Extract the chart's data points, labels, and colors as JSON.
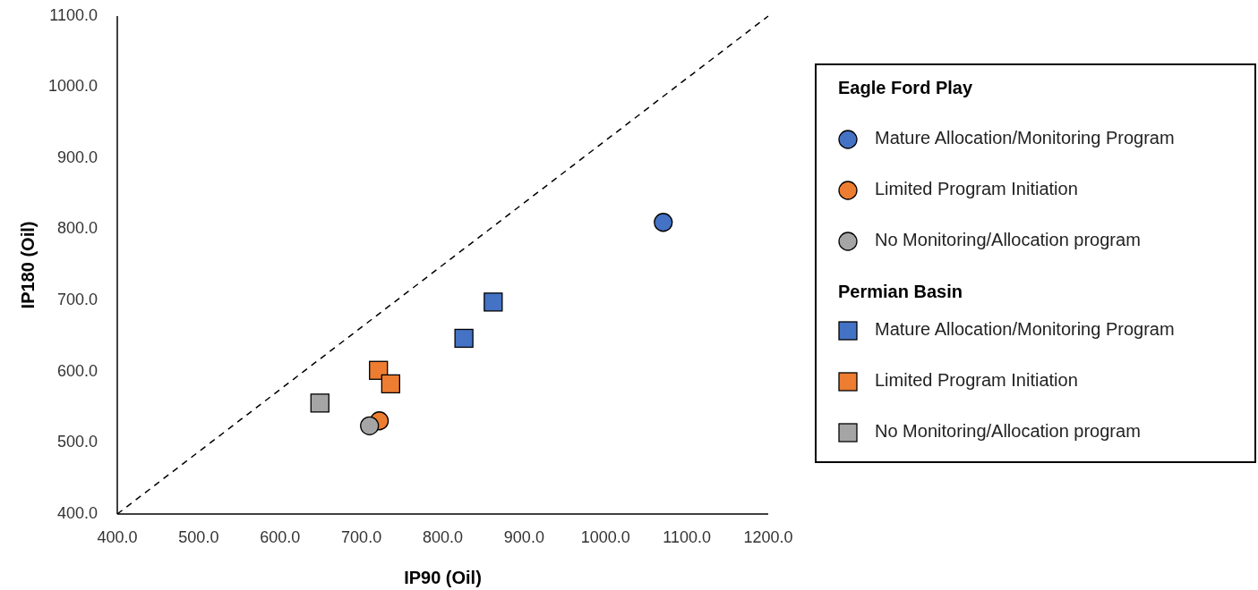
{
  "chart_data": {
    "type": "scatter",
    "xlabel": "IP90 (Oil)",
    "ylabel": "IP180 (Oil)",
    "xlim": [
      400,
      1200
    ],
    "ylim": [
      400,
      1100
    ],
    "xticks": [
      {
        "value": 400,
        "label": "400.0"
      },
      {
        "value": 500,
        "label": "500.0"
      },
      {
        "value": 600,
        "label": "600.0"
      },
      {
        "value": 700,
        "label": "700.0"
      },
      {
        "value": 800,
        "label": "800.0"
      },
      {
        "value": 900,
        "label": "900.0"
      },
      {
        "value": 1000,
        "label": "1000.0"
      },
      {
        "value": 1100,
        "label": "1100.0"
      },
      {
        "value": 1200,
        "label": "1200.0"
      }
    ],
    "yticks": [
      {
        "value": 400,
        "label": "400.0"
      },
      {
        "value": 500,
        "label": "500.0"
      },
      {
        "value": 600,
        "label": "600.0"
      },
      {
        "value": 700,
        "label": "700.0"
      },
      {
        "value": 800,
        "label": "800.0"
      },
      {
        "value": 900,
        "label": "900.0"
      },
      {
        "value": 1000,
        "label": "1000.0"
      },
      {
        "value": 1100,
        "label": "1100.0"
      }
    ],
    "grid": false,
    "legend": "right",
    "annotations": [
      "Eagle Ford Play",
      "Permian Basin"
    ],
    "series": [
      {
        "type": "line",
        "x": [
          400,
          1200
        ],
        "values": [
          400,
          1100
        ],
        "color": "#000000",
        "line_style": "dashed",
        "marker": "none"
      },
      {
        "name": "Mature Allocation/Monitoring Program",
        "color": "#4472c4",
        "marker": "circle",
        "x": [
          1071
        ],
        "values": [
          810
        ]
      },
      {
        "name": "Limited Program Initiation",
        "color": "#ed7d31",
        "marker": "circle",
        "x": [
          722
        ],
        "values": [
          531
        ]
      },
      {
        "name": "No Monitoring/Allocation program",
        "color": "#a5a5a5",
        "marker": "circle",
        "x": [
          710
        ],
        "values": [
          524
        ]
      },
      {
        "name": "Mature Allocation/Monitoring Program",
        "color": "#4472c4",
        "marker": "square",
        "x": [
          862,
          826
        ],
        "values": [
          698,
          647
        ]
      },
      {
        "name": "Limited Program Initiation",
        "color": "#ed7d31",
        "marker": "square",
        "x": [
          721,
          736
        ],
        "values": [
          602,
          583
        ]
      },
      {
        "name": "No Monitoring/Allocation program",
        "color": "#a5a5a5",
        "marker": "square",
        "x": [
          649
        ],
        "values": [
          556
        ]
      }
    ]
  }
}
